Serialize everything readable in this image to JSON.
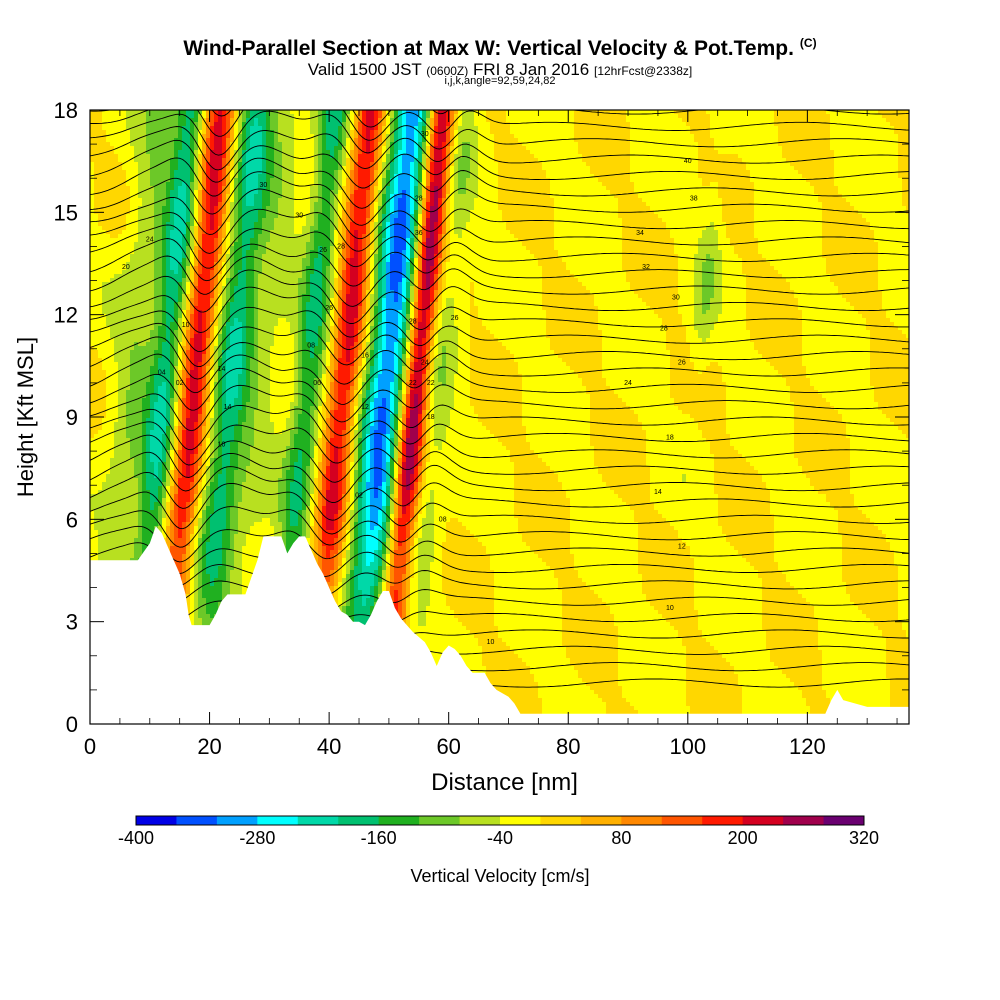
{
  "title": {
    "main": "Wind-Parallel Section at Max W: Vertical Velocity & Pot.Temp.",
    "copyright": "(C)",
    "valid_main": "Valid 1500 JST",
    "valid_z": "(0600Z)",
    "valid_date": "FRI 8 Jan 2016",
    "valid_fcst": "[12hrFcst@2338z]",
    "indices": "i,j,k,angle=92,59,24,82"
  },
  "chart_data": {
    "type": "heatmap",
    "xlabel": "Distance [nm]",
    "ylabel": "Height [Kft MSL]",
    "xlim": [
      0,
      137
    ],
    "ylim": [
      0,
      18
    ],
    "x_ticks": [
      0,
      20,
      40,
      60,
      80,
      100,
      120
    ],
    "y_ticks": [
      0,
      3,
      6,
      9,
      12,
      15,
      18
    ],
    "colorbar": {
      "label": "Vertical Velocity [cm/s]",
      "ticks": [
        -400,
        -280,
        -160,
        -40,
        80,
        200,
        320
      ],
      "range": [
        -400,
        320
      ],
      "colors": [
        "#0000e6",
        "#0050ff",
        "#00a0ff",
        "#00ffff",
        "#00d8a8",
        "#00c070",
        "#20b020",
        "#6cc828",
        "#b8e020",
        "#ffff00",
        "#ffd700",
        "#ffb000",
        "#ff8800",
        "#ff5500",
        "#ff1a00",
        "#d40020",
        "#a0004c",
        "#6a0070"
      ]
    },
    "vertical_velocity_bands": [
      {
        "x": 7,
        "w": 4,
        "peak": -70
      },
      {
        "x": 12,
        "w": 2.5,
        "peak": -180
      },
      {
        "x": 17,
        "w": 2.5,
        "peak": 220
      },
      {
        "x": 23,
        "w": 3,
        "peak": -180
      },
      {
        "x": 28,
        "w": 4,
        "peak": -50
      },
      {
        "x": 36,
        "w": 2.5,
        "peak": -160
      },
      {
        "x": 42,
        "w": 2.5,
        "peak": 220
      },
      {
        "x": 49,
        "w": 3.5,
        "peak": -320
      },
      {
        "x": 54,
        "w": 2.2,
        "peak": 290
      },
      {
        "x": 58,
        "w": 2.5,
        "peak": -60
      },
      {
        "x": 101,
        "w": 2,
        "peak": -60
      }
    ],
    "terrain_kft": [
      [
        0,
        4.8
      ],
      [
        8,
        4.8
      ],
      [
        10,
        5.3
      ],
      [
        11,
        5.8
      ],
      [
        12,
        5.6
      ],
      [
        13,
        5.2
      ],
      [
        14,
        4.8
      ],
      [
        15,
        4.4
      ],
      [
        16,
        3.8
      ],
      [
        16.5,
        3.2
      ],
      [
        17,
        2.9
      ],
      [
        20,
        2.9
      ],
      [
        21,
        3.2
      ],
      [
        22,
        3.6
      ],
      [
        23,
        3.8
      ],
      [
        26,
        3.8
      ],
      [
        27,
        4.3
      ],
      [
        28,
        4.8
      ],
      [
        29,
        5.5
      ],
      [
        32,
        5.5
      ],
      [
        33,
        5.0
      ],
      [
        34,
        5.3
      ],
      [
        35,
        5.5
      ],
      [
        36,
        5.5
      ],
      [
        37,
        5.1
      ],
      [
        38,
        4.7
      ],
      [
        39,
        4.4
      ],
      [
        40,
        4.0
      ],
      [
        41,
        3.6
      ],
      [
        42,
        3.3
      ],
      [
        43,
        3.2
      ],
      [
        44,
        3.0
      ],
      [
        45,
        3.0
      ],
      [
        46,
        2.9
      ],
      [
        47,
        3.2
      ],
      [
        48,
        3.6
      ],
      [
        49,
        3.9
      ],
      [
        50,
        3.9
      ],
      [
        51,
        3.4
      ],
      [
        52,
        3.1
      ],
      [
        53,
        2.9
      ],
      [
        54,
        2.7
      ],
      [
        56,
        2.4
      ],
      [
        57,
        2.1
      ],
      [
        58,
        1.7
      ],
      [
        59,
        2.1
      ],
      [
        60,
        2.3
      ],
      [
        61,
        2.2
      ],
      [
        62,
        2.0
      ],
      [
        63,
        1.7
      ],
      [
        64,
        1.5
      ],
      [
        66,
        1.5
      ],
      [
        67,
        1.2
      ],
      [
        68,
        1.0
      ],
      [
        70,
        0.8
      ],
      [
        71,
        0.6
      ],
      [
        72,
        0.3
      ],
      [
        123,
        0.3
      ],
      [
        124,
        0.7
      ],
      [
        125,
        1.0
      ],
      [
        126,
        0.7
      ],
      [
        130,
        0.5
      ],
      [
        137,
        0.5
      ]
    ],
    "isentrope_labels": [
      {
        "x": 10,
        "y": 14.2,
        "text": "24"
      },
      {
        "x": 6,
        "y": 13.4,
        "text": "20"
      },
      {
        "x": 16,
        "y": 11.7,
        "text": "10"
      },
      {
        "x": 12,
        "y": 10.3,
        "text": "04"
      },
      {
        "x": 15,
        "y": 10.0,
        "text": "02"
      },
      {
        "x": 22,
        "y": 10.4,
        "text": "14"
      },
      {
        "x": 23,
        "y": 9.3,
        "text": "14"
      },
      {
        "x": 22,
        "y": 8.2,
        "text": "10"
      },
      {
        "x": 29,
        "y": 15.8,
        "text": "30"
      },
      {
        "x": 35,
        "y": 14.9,
        "text": "30"
      },
      {
        "x": 39,
        "y": 13.9,
        "text": "26"
      },
      {
        "x": 42,
        "y": 14.0,
        "text": "28"
      },
      {
        "x": 40,
        "y": 12.2,
        "text": "26"
      },
      {
        "x": 37,
        "y": 11.1,
        "text": "08"
      },
      {
        "x": 38,
        "y": 10.0,
        "text": "06"
      },
      {
        "x": 46,
        "y": 10.8,
        "text": "16"
      },
      {
        "x": 46,
        "y": 9.3,
        "text": "12"
      },
      {
        "x": 45,
        "y": 6.7,
        "text": "02"
      },
      {
        "x": 56,
        "y": 17.3,
        "text": "30"
      },
      {
        "x": 55,
        "y": 15.4,
        "text": "28"
      },
      {
        "x": 55,
        "y": 14.4,
        "text": "36"
      },
      {
        "x": 54,
        "y": 11.8,
        "text": "28"
      },
      {
        "x": 56,
        "y": 10.6,
        "text": "24"
      },
      {
        "x": 54,
        "y": 10.0,
        "text": "22"
      },
      {
        "x": 57,
        "y": 10.0,
        "text": "22"
      },
      {
        "x": 57,
        "y": 9.0,
        "text": "18"
      },
      {
        "x": 61,
        "y": 11.9,
        "text": "26"
      },
      {
        "x": 59,
        "y": 6.0,
        "text": "08"
      },
      {
        "x": 67,
        "y": 2.4,
        "text": "10"
      },
      {
        "x": 100,
        "y": 16.5,
        "text": "40"
      },
      {
        "x": 101,
        "y": 15.4,
        "text": "38"
      },
      {
        "x": 92,
        "y": 14.4,
        "text": "34"
      },
      {
        "x": 93,
        "y": 13.4,
        "text": "32"
      },
      {
        "x": 98,
        "y": 12.5,
        "text": "30"
      },
      {
        "x": 96,
        "y": 11.6,
        "text": "28"
      },
      {
        "x": 99,
        "y": 10.6,
        "text": "26"
      },
      {
        "x": 90,
        "y": 10.0,
        "text": "24"
      },
      {
        "x": 97,
        "y": 8.4,
        "text": "18"
      },
      {
        "x": 95,
        "y": 6.8,
        "text": "14"
      },
      {
        "x": 99,
        "y": 5.2,
        "text": "12"
      },
      {
        "x": 97,
        "y": 3.4,
        "text": "10"
      }
    ]
  }
}
